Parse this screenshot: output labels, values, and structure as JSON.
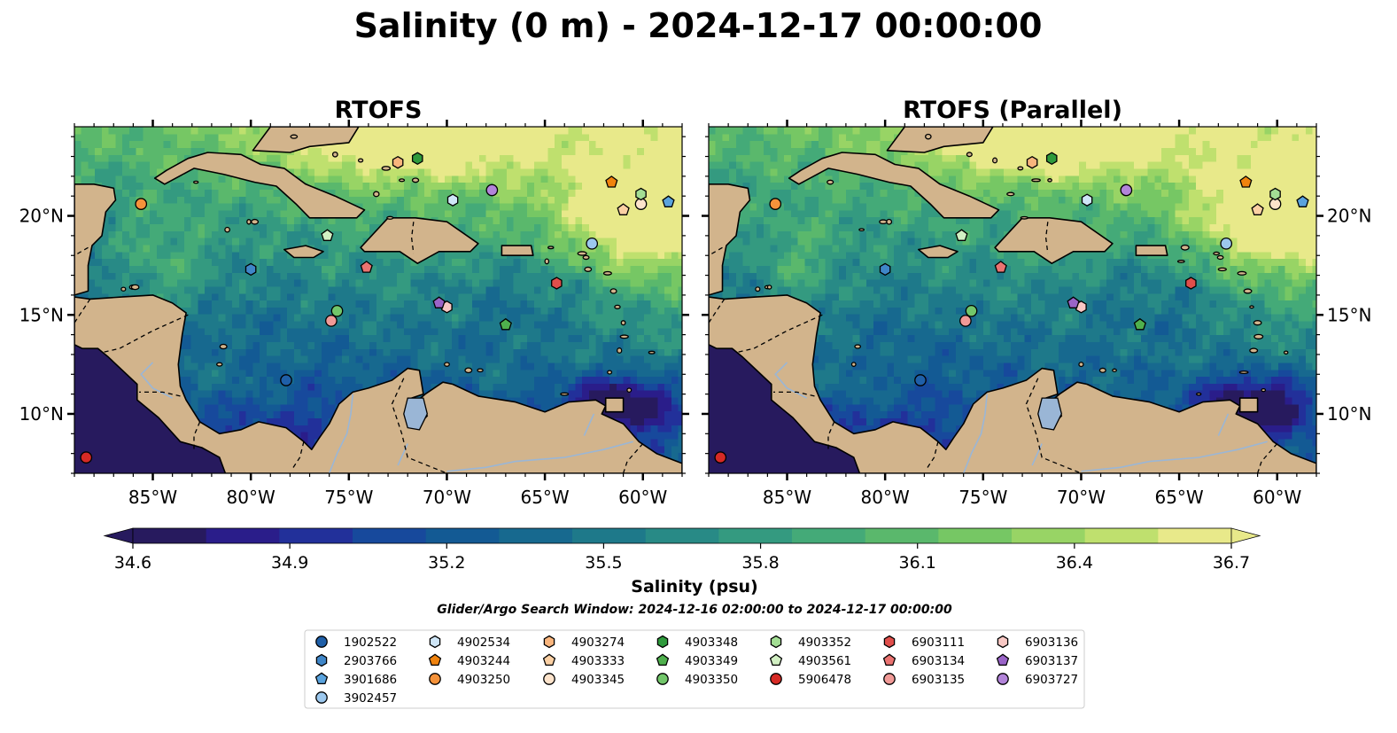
{
  "figure": {
    "title": "Salinity (0 m) - 2024-12-17 00:00:00",
    "search_window": "Glider/Argo Search Window: 2024-12-16 02:00:00 to 2024-12-17 00:00:00"
  },
  "chart_data": [
    {
      "type": "heatmap",
      "title": "RTOFS",
      "xlim": [
        -89,
        -58
      ],
      "ylim": [
        7,
        24.5
      ],
      "x_ticks": [
        -85,
        -80,
        -75,
        -70,
        -65,
        -60
      ],
      "x_tick_labels": [
        "85°W",
        "80°W",
        "75°W",
        "70°W",
        "65°W",
        "60°W"
      ],
      "y_ticks": [
        10,
        15,
        20
      ],
      "y_tick_labels": [
        "10°N",
        "15°N",
        "20°N"
      ],
      "y_tick_side": "left",
      "field_variant": 0
    },
    {
      "type": "heatmap",
      "title": "RTOFS (Parallel)",
      "xlim": [
        -89,
        -58
      ],
      "ylim": [
        7,
        24.5
      ],
      "x_ticks": [
        -85,
        -80,
        -75,
        -70,
        -65,
        -60
      ],
      "x_tick_labels": [
        "85°W",
        "80°W",
        "75°W",
        "70°W",
        "65°W",
        "60°W"
      ],
      "y_ticks": [
        10,
        15,
        20
      ],
      "y_tick_labels": [
        "10°N",
        "15°N",
        "20°N"
      ],
      "y_tick_side": "right",
      "field_variant": 1
    }
  ],
  "colorbar": {
    "label": "Salinity (psu)",
    "min": 34.6,
    "max": 36.7,
    "ticks": [
      34.6,
      34.9,
      35.2,
      35.5,
      35.8,
      36.1,
      36.4,
      36.7
    ],
    "tick_labels": [
      "34.6",
      "34.9",
      "35.2",
      "35.5",
      "35.8",
      "36.1",
      "36.4",
      "36.7"
    ],
    "extend": "both",
    "colors": [
      "#271a5e",
      "#2a1d8a",
      "#22309a",
      "#17499c",
      "#135a94",
      "#17698f",
      "#1e798a",
      "#288a86",
      "#349a80",
      "#44aa78",
      "#5ab86c",
      "#76c764",
      "#98d465",
      "#bfe06e",
      "#e8e98a"
    ]
  },
  "colors": {
    "land": "#d2b48c",
    "deep_ocean": "#271a5e",
    "coast": "#000000",
    "rivers": "#9ab6d6"
  },
  "legend": {
    "entries": [
      {
        "id": "1902522",
        "marker": "circle",
        "color": "#1f5fa8"
      },
      {
        "id": "2903766",
        "marker": "hexagon",
        "color": "#3f86c8"
      },
      {
        "id": "3901686",
        "marker": "pentagon",
        "color": "#5aa3de"
      },
      {
        "id": "3902457",
        "marker": "circle",
        "color": "#9cc8ee"
      },
      {
        "id": "4902534",
        "marker": "hexagon",
        "color": "#cfe6f7"
      },
      {
        "id": "4903244",
        "marker": "pentagon",
        "color": "#f0830e"
      },
      {
        "id": "4903250",
        "marker": "circle",
        "color": "#f5923a"
      },
      {
        "id": "4903274",
        "marker": "hexagon",
        "color": "#f9b57d"
      },
      {
        "id": "4903333",
        "marker": "pentagon",
        "color": "#fbd0a4"
      },
      {
        "id": "4903345",
        "marker": "circle",
        "color": "#fde3cb"
      },
      {
        "id": "4903348",
        "marker": "hexagon",
        "color": "#2e9a3c"
      },
      {
        "id": "4903349",
        "marker": "pentagon",
        "color": "#4fb04d"
      },
      {
        "id": "4903350",
        "marker": "circle",
        "color": "#72c66a"
      },
      {
        "id": "4903352",
        "marker": "hexagon",
        "color": "#a3de94"
      },
      {
        "id": "4903561",
        "marker": "pentagon",
        "color": "#d2f0c3"
      },
      {
        "id": "5906478",
        "marker": "circle",
        "color": "#d62a25"
      },
      {
        "id": "6903111",
        "marker": "hexagon",
        "color": "#e04e4b"
      },
      {
        "id": "6903134",
        "marker": "pentagon",
        "color": "#ea7371"
      },
      {
        "id": "6903135",
        "marker": "circle",
        "color": "#f19a97"
      },
      {
        "id": "6903136",
        "marker": "hexagon",
        "color": "#f8c8c4"
      },
      {
        "id": "6903137",
        "marker": "pentagon",
        "color": "#9a64c8"
      },
      {
        "id": "6903727",
        "marker": "circle",
        "color": "#b284d9"
      }
    ]
  },
  "observations": [
    {
      "id": "1902522",
      "lon": -78.2,
      "lat": 11.7
    },
    {
      "id": "2903766",
      "lon": -80.0,
      "lat": 17.3
    },
    {
      "id": "3901686",
      "lon": -58.7,
      "lat": 20.7
    },
    {
      "id": "3902457",
      "lon": -62.6,
      "lat": 18.6
    },
    {
      "id": "4902534",
      "lon": -69.7,
      "lat": 20.8
    },
    {
      "id": "4903244",
      "lon": -61.6,
      "lat": 21.7
    },
    {
      "id": "4903250",
      "lon": -85.6,
      "lat": 20.6
    },
    {
      "id": "4903274",
      "lon": -72.5,
      "lat": 22.7
    },
    {
      "id": "4903333",
      "lon": -61.0,
      "lat": 20.3
    },
    {
      "id": "4903345",
      "lon": -60.1,
      "lat": 20.6
    },
    {
      "id": "4903348",
      "lon": -71.5,
      "lat": 22.9
    },
    {
      "id": "4903349",
      "lon": -67.0,
      "lat": 14.5
    },
    {
      "id": "4903350",
      "lon": -75.6,
      "lat": 15.2
    },
    {
      "id": "4903352",
      "lon": -60.1,
      "lat": 21.1
    },
    {
      "id": "4903561",
      "lon": -76.1,
      "lat": 19.0
    },
    {
      "id": "5906478",
      "lon": -88.4,
      "lat": 7.8
    },
    {
      "id": "6903111",
      "lon": -64.4,
      "lat": 16.6
    },
    {
      "id": "6903134",
      "lon": -74.1,
      "lat": 17.4
    },
    {
      "id": "6903135",
      "lon": -75.9,
      "lat": 14.7
    },
    {
      "id": "6903136",
      "lon": -70.0,
      "lat": 15.4
    },
    {
      "id": "6903137",
      "lon": -70.4,
      "lat": 15.6
    },
    {
      "id": "6903727",
      "lon": -67.7,
      "lat": 21.3
    }
  ]
}
